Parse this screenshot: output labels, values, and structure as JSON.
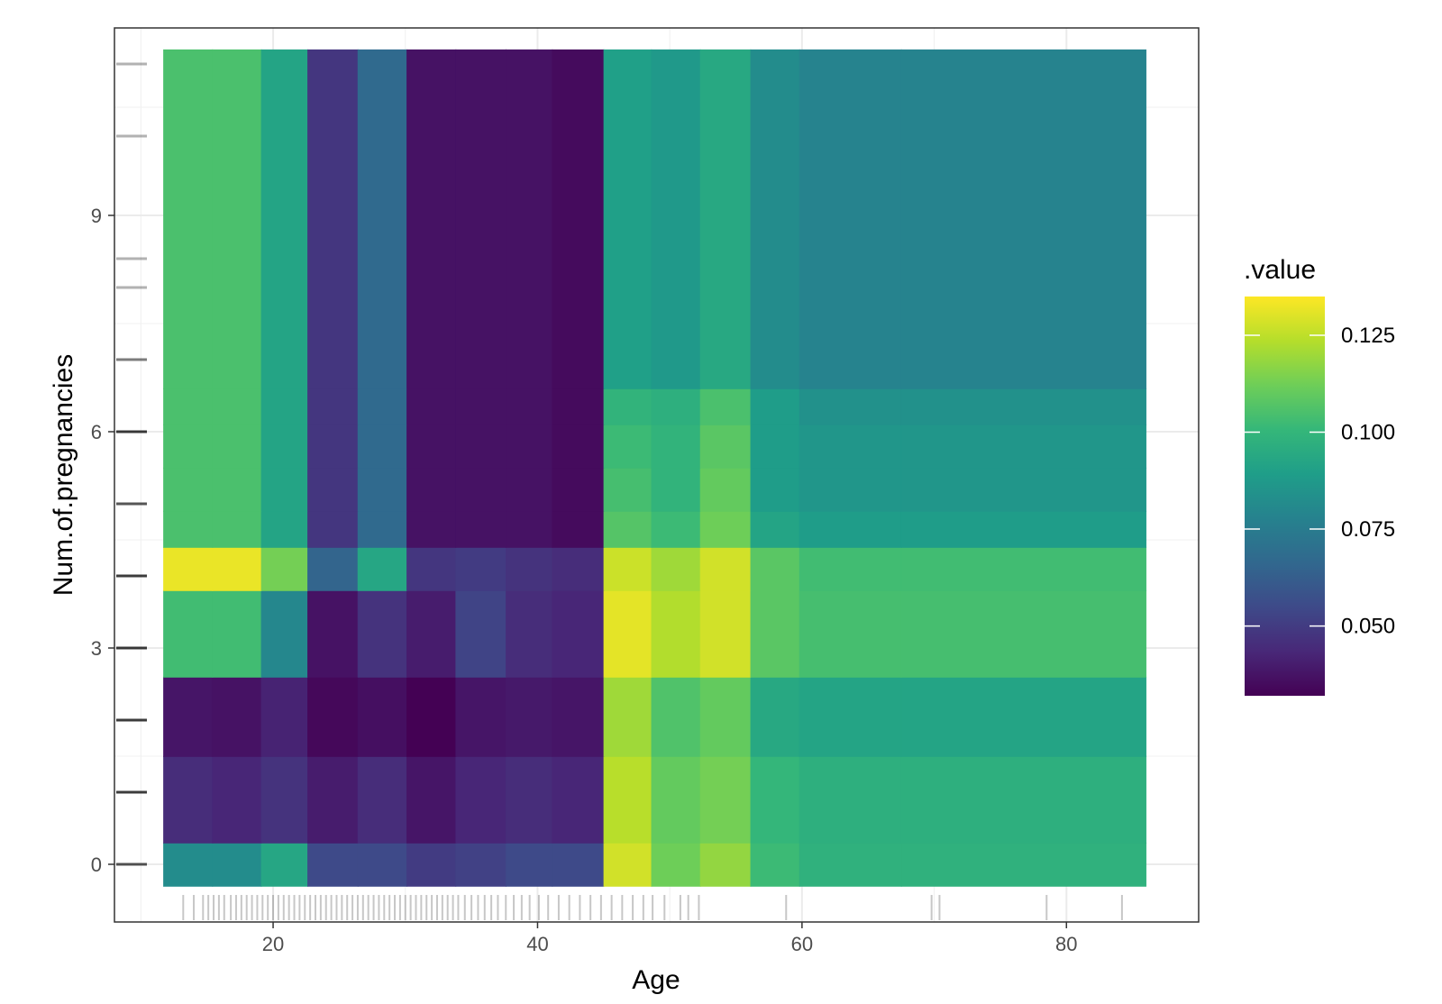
{
  "chart_data": {
    "type": "heatmap",
    "xlabel": "Age",
    "ylabel": "Num.of.pregnancies",
    "xlim": [
      8,
      90
    ],
    "ylim": [
      -0.8,
      11.6
    ],
    "x_ticks": [
      20,
      40,
      60,
      80
    ],
    "x_tick_labels": [
      "20",
      "40",
      "60",
      "80"
    ],
    "y_ticks": [
      0,
      3,
      6,
      9
    ],
    "y_tick_labels": [
      "0",
      "3",
      "6",
      "9"
    ],
    "grid": true,
    "legend": {
      "title": ".value",
      "placement": "right",
      "min": 0.032,
      "max": 0.135,
      "ticks": [
        0.05,
        0.075,
        0.1,
        0.125
      ],
      "tick_labels": [
        "0.050",
        "0.075",
        "0.100",
        "0.125"
      ],
      "colors": [
        "#440154",
        "#482878",
        "#3e4a89",
        "#31688e",
        "#26828e",
        "#1f9e89",
        "#35b779",
        "#6ece58",
        "#b5de2b",
        "#fde725"
      ]
    },
    "x_edges": [
      11.7,
      15.4,
      19.1,
      22.6,
      26.4,
      30.1,
      33.8,
      37.6,
      41.1,
      45.0,
      48.6,
      52.3,
      56.1,
      59.8,
      67.5,
      86.0
    ],
    "y_edges": [
      -0.3,
      0.3,
      1.5,
      2.6,
      3.8,
      4.4,
      4.9,
      5.5,
      6.1,
      6.6,
      11.3
    ],
    "values": [
      [
        0.082,
        0.082,
        0.093,
        0.055,
        0.055,
        0.05,
        0.052,
        0.055,
        0.055,
        0.128,
        0.112,
        0.118,
        0.102,
        0.098,
        0.098
      ],
      [
        0.045,
        0.043,
        0.047,
        0.04,
        0.045,
        0.038,
        0.043,
        0.045,
        0.043,
        0.124,
        0.11,
        0.113,
        0.1,
        0.097,
        0.097
      ],
      [
        0.038,
        0.037,
        0.042,
        0.034,
        0.036,
        0.032,
        0.038,
        0.039,
        0.038,
        0.12,
        0.106,
        0.11,
        0.094,
        0.092,
        0.092
      ],
      [
        0.103,
        0.103,
        0.08,
        0.037,
        0.047,
        0.04,
        0.053,
        0.045,
        0.043,
        0.131,
        0.123,
        0.128,
        0.108,
        0.104,
        0.104
      ],
      [
        0.132,
        0.132,
        0.113,
        0.065,
        0.093,
        0.048,
        0.05,
        0.047,
        0.045,
        0.127,
        0.12,
        0.128,
        0.108,
        0.103,
        0.103
      ],
      [
        0.105,
        0.105,
        0.092,
        0.048,
        0.067,
        0.037,
        0.037,
        0.037,
        0.035,
        0.107,
        0.102,
        0.112,
        0.092,
        0.089,
        0.089
      ],
      [
        0.105,
        0.105,
        0.092,
        0.048,
        0.067,
        0.037,
        0.037,
        0.037,
        0.035,
        0.104,
        0.099,
        0.11,
        0.089,
        0.086,
        0.086
      ],
      [
        0.105,
        0.105,
        0.092,
        0.048,
        0.067,
        0.037,
        0.037,
        0.037,
        0.035,
        0.102,
        0.099,
        0.108,
        0.089,
        0.086,
        0.086
      ],
      [
        0.105,
        0.105,
        0.092,
        0.048,
        0.067,
        0.037,
        0.037,
        0.037,
        0.035,
        0.099,
        0.097,
        0.105,
        0.089,
        0.084,
        0.084
      ],
      [
        0.105,
        0.105,
        0.092,
        0.048,
        0.067,
        0.037,
        0.037,
        0.037,
        0.035,
        0.09,
        0.087,
        0.094,
        0.082,
        0.078,
        0.078
      ]
    ],
    "rug_x": [
      13.2,
      14.0,
      14.7,
      15.1,
      15.5,
      15.9,
      16.3,
      16.8,
      17.2,
      17.6,
      18.0,
      18.4,
      18.8,
      19.2,
      19.6,
      20.0,
      20.4,
      20.8,
      21.2,
      21.6,
      22.0,
      22.4,
      22.8,
      23.2,
      23.6,
      24.0,
      24.4,
      24.8,
      25.2,
      25.6,
      26.0,
      26.4,
      26.8,
      27.2,
      27.6,
      28.0,
      28.4,
      28.8,
      29.2,
      29.6,
      30.0,
      30.4,
      30.8,
      31.2,
      31.6,
      32.0,
      32.4,
      32.8,
      33.2,
      33.6,
      34.0,
      34.5,
      35.0,
      35.5,
      36.0,
      36.5,
      37.0,
      37.6,
      38.2,
      38.8,
      39.4,
      40.1,
      40.8,
      41.6,
      42.4,
      43.2,
      44.0,
      44.8,
      45.6,
      46.4,
      47.2,
      48.0,
      48.7,
      49.6,
      50.8,
      51.4,
      52.2,
      58.8,
      69.8,
      70.4,
      78.5,
      84.2
    ],
    "rug_y": [
      0,
      0,
      0,
      1,
      1,
      1,
      1,
      2,
      2,
      2,
      2,
      3,
      3,
      3,
      3,
      4,
      4,
      4,
      4,
      5,
      5,
      5,
      6,
      6,
      6,
      6,
      7,
      7,
      8,
      8.4,
      10.1,
      11.1
    ]
  }
}
